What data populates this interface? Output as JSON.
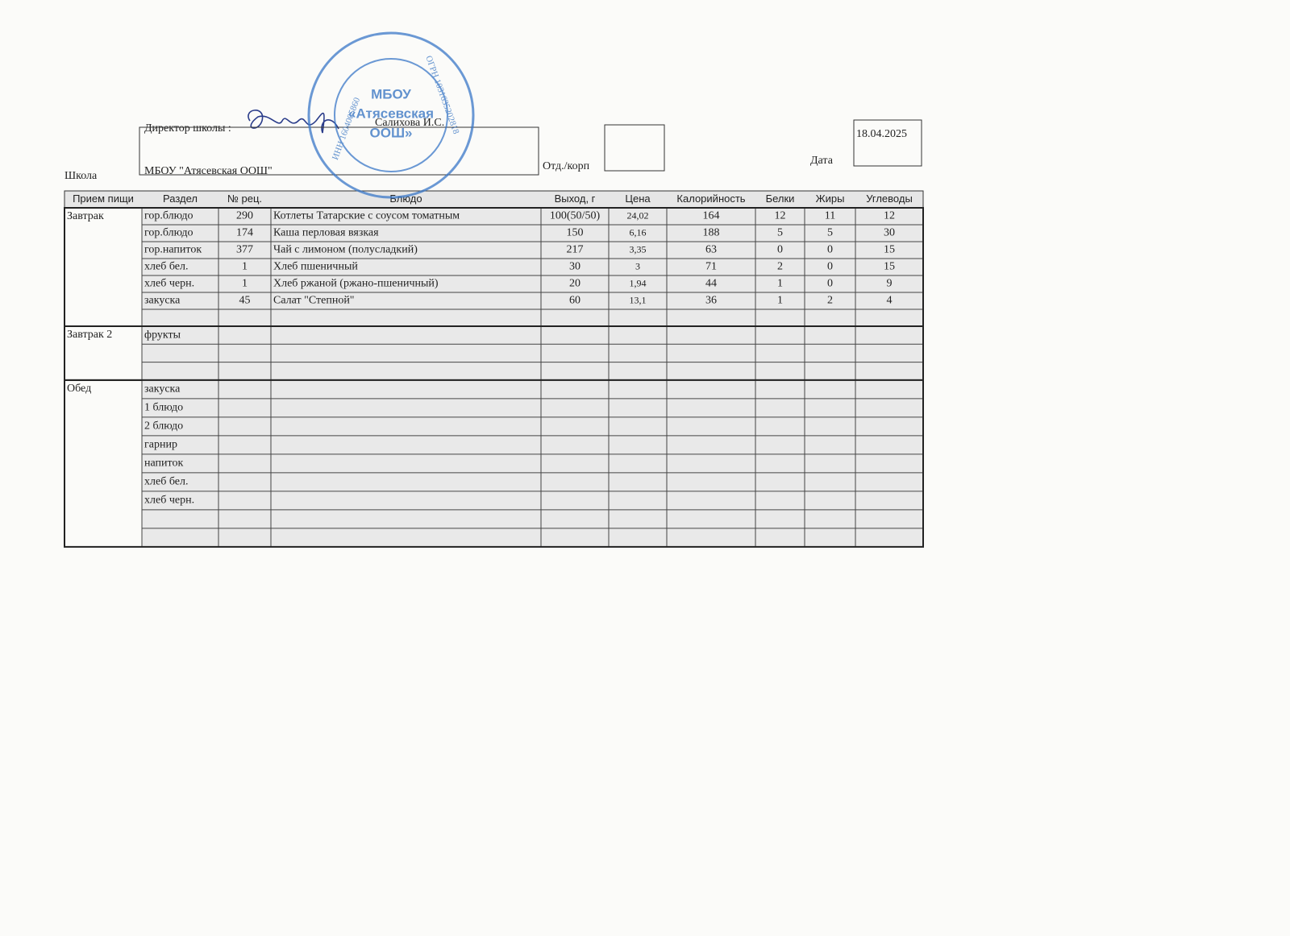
{
  "header": {
    "director_label": "Директор школы :",
    "director_name": "Салихова И.С.",
    "school_label": "Школа",
    "school_name": "МБОУ \"Атясевская ООШ\"",
    "dept_label": "Отд./корп",
    "date_label": "Дата",
    "date": "18.04.2025"
  },
  "stamp": {
    "lines": [
      "МБОУ",
      "«Атясевская",
      "ООШ»"
    ],
    "ogrn": "ОГРН 1031635202818",
    "inn": "ИНН 1604005860"
  },
  "table": {
    "columns": [
      "Прием пищи",
      "Раздел",
      "№ рец.",
      "Блюдо",
      "Выход, г",
      "Цена",
      "Калорийность",
      "Белки",
      "Жиры",
      "Углеводы"
    ],
    "sections": [
      {
        "meal": "Завтрак",
        "rows": [
          [
            "гор.блюдо",
            "290",
            "Котлеты Татарские с соусом томатным",
            "100(50/50)",
            "24,02",
            "164",
            "12",
            "11",
            "12"
          ],
          [
            "гор.блюдо",
            "174",
            "Каша перловая вязкая",
            "150",
            "6,16",
            "188",
            "5",
            "5",
            "30"
          ],
          [
            "гор.напиток",
            "377",
            "Чай с лимоном (полусладкий)",
            "217",
            "3,35",
            "63",
            "0",
            "0",
            "15"
          ],
          [
            "хлеб бел.",
            "1",
            "Хлеб пшеничный",
            "30",
            "3",
            "71",
            "2",
            "0",
            "15"
          ],
          [
            "хлеб черн.",
            "1",
            "Хлеб ржаной (ржано-пшеничный)",
            "20",
            "1,94",
            "44",
            "1",
            "0",
            "9"
          ],
          [
            "закуска",
            "45",
            "Салат \"Степной\"",
            "60",
            "13,1",
            "36",
            "1",
            "2",
            "4"
          ]
        ]
      },
      {
        "meal": "Завтрак 2",
        "rows": [
          [
            "фрукты"
          ]
        ]
      },
      {
        "meal": "Обед",
        "rows": [
          [
            "закуска"
          ],
          [
            "1 блюдо"
          ],
          [
            "2 блюдо"
          ],
          [
            "гарнир"
          ],
          [
            "напиток"
          ],
          [
            "хлеб бел."
          ],
          [
            "хлеб черн."
          ]
        ]
      }
    ]
  }
}
